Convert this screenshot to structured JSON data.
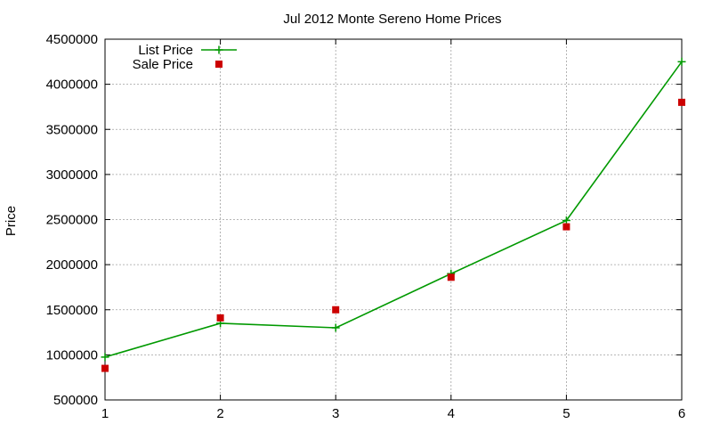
{
  "chart_data": {
    "type": "line",
    "title": "Jul 2012 Monte Sereno Home Prices",
    "xlabel": "",
    "ylabel": "Price",
    "x": [
      1,
      2,
      3,
      4,
      5,
      6
    ],
    "xlim": [
      1,
      6
    ],
    "ylim": [
      500000,
      4500000
    ],
    "x_ticks": [
      "1",
      "2",
      "3",
      "4",
      "5",
      "6"
    ],
    "y_ticks": [
      "500000",
      "1000000",
      "1500000",
      "2000000",
      "2500000",
      "3000000",
      "3500000",
      "4000000",
      "4500000"
    ],
    "grid": true,
    "legend_position": "top-left",
    "series": [
      {
        "name": "List Price",
        "style": "line-with-plus-markers",
        "color": "#009900",
        "values": [
          975000,
          1350000,
          1300000,
          1900000,
          2490000,
          4250000
        ]
      },
      {
        "name": "Sale Price",
        "style": "square-markers",
        "color": "#cc0000",
        "values": [
          850000,
          1410000,
          1500000,
          1860000,
          2420000,
          3800000
        ]
      }
    ]
  }
}
